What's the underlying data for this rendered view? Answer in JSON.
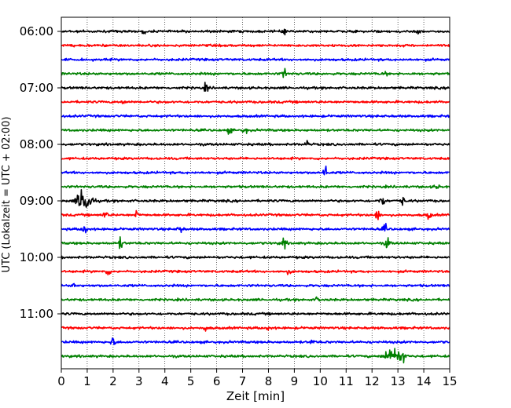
{
  "chart_data": {
    "type": "line",
    "xlabel": "Zeit  [min]",
    "ylabel": "UTC (Lokalzeit = UTC + 02:00)",
    "xlim": [
      0,
      15
    ],
    "x_ticks": [
      0,
      1,
      2,
      3,
      4,
      5,
      6,
      7,
      8,
      9,
      10,
      11,
      12,
      13,
      14,
      15
    ],
    "y_tick_labels": [
      "06:00",
      "07:00",
      "08:00",
      "09:00",
      "10:00",
      "11:00"
    ],
    "row_interval_minutes": 15,
    "grid": "vertical dotted at each minute",
    "color_cycle": [
      "#000000",
      "#ff0000",
      "#0000ff",
      "#008000"
    ],
    "rows": [
      {
        "time": "06:00",
        "color": "#000000",
        "events": [
          {
            "t": 3.2,
            "amp": 0.5
          },
          {
            "t": 8.6,
            "amp": 0.5
          },
          {
            "t": 13.8,
            "amp": 0.4
          }
        ]
      },
      {
        "time": "06:15",
        "color": "#ff0000",
        "events": []
      },
      {
        "time": "06:30",
        "color": "#0000ff",
        "events": []
      },
      {
        "time": "06:45",
        "color": "#008000",
        "events": [
          {
            "t": 8.6,
            "amp": 1.2
          },
          {
            "t": 12.5,
            "amp": 0.4
          }
        ]
      },
      {
        "time": "07:00",
        "color": "#000000",
        "events": [
          {
            "t": 5.6,
            "amp": 1.0
          }
        ]
      },
      {
        "time": "07:15",
        "color": "#ff0000",
        "events": [
          {
            "t": 2.4,
            "amp": 0.5
          }
        ]
      },
      {
        "time": "07:30",
        "color": "#0000ff",
        "events": []
      },
      {
        "time": "07:45",
        "color": "#008000",
        "events": [
          {
            "t": 6.5,
            "amp": 0.7
          },
          {
            "t": 7.1,
            "amp": 0.7
          }
        ]
      },
      {
        "time": "08:00",
        "color": "#000000",
        "events": [
          {
            "t": 9.5,
            "amp": 0.7
          }
        ]
      },
      {
        "time": "08:15",
        "color": "#ff0000",
        "events": []
      },
      {
        "time": "08:30",
        "color": "#0000ff",
        "events": [
          {
            "t": 10.2,
            "amp": 2.0
          }
        ]
      },
      {
        "time": "08:45",
        "color": "#008000",
        "events": [
          {
            "t": 14.5,
            "amp": 0.6
          }
        ]
      },
      {
        "time": "09:00",
        "color": "#000000",
        "events": [
          {
            "t": 0.9,
            "amp": 3.5
          },
          {
            "t": 12.4,
            "amp": 1.6
          },
          {
            "t": 13.2,
            "amp": 1.0
          }
        ]
      },
      {
        "time": "09:15",
        "color": "#ff0000",
        "events": [
          {
            "t": 1.7,
            "amp": 1.0
          },
          {
            "t": 2.9,
            "amp": 1.0
          },
          {
            "t": 12.2,
            "amp": 1.5
          },
          {
            "t": 14.2,
            "amp": 1.0
          }
        ]
      },
      {
        "time": "09:30",
        "color": "#0000ff",
        "events": [
          {
            "t": 0.9,
            "amp": 1.5
          },
          {
            "t": 4.6,
            "amp": 1.0
          },
          {
            "t": 12.5,
            "amp": 1.0
          }
        ]
      },
      {
        "time": "09:45",
        "color": "#008000",
        "events": [
          {
            "t": 2.3,
            "amp": 1.5
          },
          {
            "t": 8.6,
            "amp": 1.5
          },
          {
            "t": 12.6,
            "amp": 1.5
          }
        ]
      },
      {
        "time": "10:00",
        "color": "#000000",
        "events": []
      },
      {
        "time": "10:15",
        "color": "#ff0000",
        "events": [
          {
            "t": 1.8,
            "amp": 1.0
          },
          {
            "t": 8.8,
            "amp": 0.6
          }
        ]
      },
      {
        "time": "10:30",
        "color": "#0000ff",
        "events": [
          {
            "t": 0.5,
            "amp": 0.5
          }
        ]
      },
      {
        "time": "10:45",
        "color": "#008000",
        "events": [
          {
            "t": 9.9,
            "amp": 0.5
          }
        ]
      },
      {
        "time": "11:00",
        "color": "#000000",
        "events": []
      },
      {
        "time": "11:15",
        "color": "#ff0000",
        "events": [
          {
            "t": 5.6,
            "amp": 0.8
          },
          {
            "t": 8.0,
            "amp": 0.6
          }
        ]
      },
      {
        "time": "11:30",
        "color": "#0000ff",
        "events": [
          {
            "t": 2.0,
            "amp": 1.2
          },
          {
            "t": 9.7,
            "amp": 0.6
          }
        ]
      },
      {
        "time": "11:45",
        "color": "#008000",
        "events": [
          {
            "t": 12.8,
            "amp": 2.5
          },
          {
            "t": 13.2,
            "amp": 2.0
          }
        ]
      }
    ]
  }
}
